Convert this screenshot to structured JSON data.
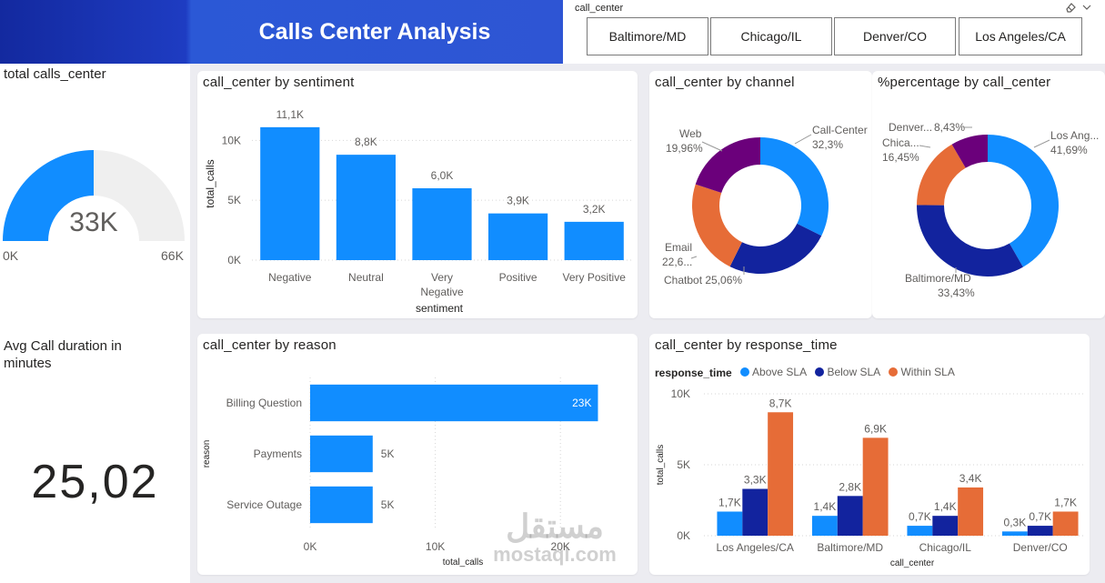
{
  "header": {
    "title": "Calls Center Analysis"
  },
  "slicer": {
    "label": "call_center",
    "options": [
      "Baltimore/MD",
      "Chicago/IL",
      "Denver/CO",
      "Los Angeles/CA"
    ]
  },
  "kpi_total": {
    "title": "total calls_center",
    "value": "33K",
    "min": "0K",
    "max": "66K",
    "fraction": 0.5,
    "color": "#118dff"
  },
  "kpi_avg": {
    "title": "Avg Call duration in minutes",
    "value": "25,02"
  },
  "chart_data": [
    {
      "id": "sentiment",
      "type": "bar",
      "title": "call_center by sentiment",
      "xlabel": "sentiment",
      "ylabel": "total_calls",
      "ylim": [
        0,
        12000
      ],
      "yticks": [
        "0K",
        "5K",
        "10K"
      ],
      "categories": [
        "Negative",
        "Neutral",
        "Very Negative",
        "Positive",
        "Very Positive"
      ],
      "values": [
        11100,
        8800,
        6000,
        3900,
        3200
      ],
      "labels": [
        "11,1K",
        "8,8K",
        "6,0K",
        "3,9K",
        "3,2K"
      ],
      "color": "#118dff",
      "grid": true
    },
    {
      "id": "channel",
      "type": "pie",
      "title": "call_center by channel",
      "slices": [
        {
          "name": "Call-Center",
          "value": 32.3,
          "pct": "32,3%",
          "color": "#118dff"
        },
        {
          "name": "Chatbot",
          "value": 25.06,
          "pct": "25,06%",
          "color": "#12239e"
        },
        {
          "name": "Email",
          "value": 22.68,
          "pct": "22,6...",
          "color": "#e66c37"
        },
        {
          "name": "Web",
          "value": 19.96,
          "pct": "19,96%",
          "color": "#6b007b"
        }
      ]
    },
    {
      "id": "percentage",
      "type": "pie",
      "title": "%percentage by call_center",
      "slices": [
        {
          "name": "Los Ang...",
          "value": 41.69,
          "pct": "41,69%",
          "color": "#118dff"
        },
        {
          "name": "Baltimore/MD",
          "value": 33.43,
          "pct": "33,43%",
          "color": "#12239e"
        },
        {
          "name": "Chica...",
          "value": 16.45,
          "pct": "16,45%",
          "color": "#e66c37"
        },
        {
          "name": "Denver...",
          "value": 8.43,
          "pct": "8,43%",
          "color": "#6b007b"
        }
      ]
    },
    {
      "id": "reason",
      "type": "bar",
      "orientation": "horizontal",
      "title": "call_center by reason",
      "xlabel": "total_calls",
      "ylabel": "reason",
      "xlim": [
        0,
        25000
      ],
      "xticks": [
        "0K",
        "10K",
        "20K"
      ],
      "categories": [
        "Billing Question",
        "Payments",
        "Service Outage"
      ],
      "values": [
        23000,
        5000,
        5000
      ],
      "labels": [
        "23K",
        "5K",
        "5K"
      ],
      "color": "#118dff",
      "grid": true
    },
    {
      "id": "response",
      "type": "bar",
      "title": "call_center by response_time",
      "legend_title": "response_time",
      "xlabel": "call_center",
      "ylabel": "total_calls",
      "ylim": [
        0,
        10000
      ],
      "yticks": [
        "0K",
        "5K",
        "10K"
      ],
      "categories": [
        "Los Angeles/CA",
        "Baltimore/MD",
        "Chicago/IL",
        "Denver/CO"
      ],
      "series": [
        {
          "name": "Above SLA",
          "color": "#118dff",
          "values": [
            1700,
            1400,
            700,
            300
          ],
          "labels": [
            "1,7K",
            "1,4K",
            "0,7K",
            "0,3K"
          ]
        },
        {
          "name": "Below SLA",
          "color": "#12239e",
          "values": [
            3300,
            2800,
            1400,
            700
          ],
          "labels": [
            "3,3K",
            "2,8K",
            "1,4K",
            "0,7K"
          ]
        },
        {
          "name": "Within SLA",
          "color": "#e66c37",
          "values": [
            8700,
            6900,
            3400,
            1700
          ],
          "labels": [
            "8,7K",
            "6,9K",
            "3,4K",
            "1,7K"
          ]
        }
      ],
      "grid": true
    }
  ],
  "watermark": {
    "arabic": "مستقل",
    "latin": "mostaql.com"
  }
}
